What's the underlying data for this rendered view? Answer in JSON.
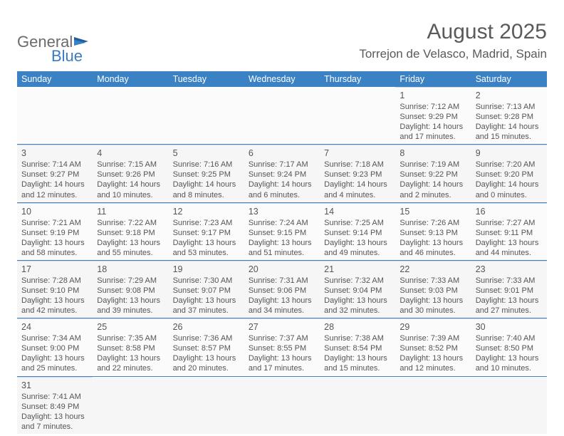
{
  "logo": {
    "text1": "General",
    "text2": "Blue"
  },
  "title": "August 2025",
  "location": "Torrejon de Velasco, Madrid, Spain",
  "colors": {
    "header_bg": "#3b82c4",
    "header_text": "#ffffff",
    "border": "#3b82c4",
    "cell_text": "#555555"
  },
  "day_headers": [
    "Sunday",
    "Monday",
    "Tuesday",
    "Wednesday",
    "Thursday",
    "Friday",
    "Saturday"
  ],
  "weeks": [
    [
      null,
      null,
      null,
      null,
      null,
      {
        "n": "1",
        "sr": "Sunrise: 7:12 AM",
        "ss": "Sunset: 9:29 PM",
        "dl": "Daylight: 14 hours and 17 minutes."
      },
      {
        "n": "2",
        "sr": "Sunrise: 7:13 AM",
        "ss": "Sunset: 9:28 PM",
        "dl": "Daylight: 14 hours and 15 minutes."
      }
    ],
    [
      {
        "n": "3",
        "sr": "Sunrise: 7:14 AM",
        "ss": "Sunset: 9:27 PM",
        "dl": "Daylight: 14 hours and 12 minutes."
      },
      {
        "n": "4",
        "sr": "Sunrise: 7:15 AM",
        "ss": "Sunset: 9:26 PM",
        "dl": "Daylight: 14 hours and 10 minutes."
      },
      {
        "n": "5",
        "sr": "Sunrise: 7:16 AM",
        "ss": "Sunset: 9:25 PM",
        "dl": "Daylight: 14 hours and 8 minutes."
      },
      {
        "n": "6",
        "sr": "Sunrise: 7:17 AM",
        "ss": "Sunset: 9:24 PM",
        "dl": "Daylight: 14 hours and 6 minutes."
      },
      {
        "n": "7",
        "sr": "Sunrise: 7:18 AM",
        "ss": "Sunset: 9:23 PM",
        "dl": "Daylight: 14 hours and 4 minutes."
      },
      {
        "n": "8",
        "sr": "Sunrise: 7:19 AM",
        "ss": "Sunset: 9:22 PM",
        "dl": "Daylight: 14 hours and 2 minutes."
      },
      {
        "n": "9",
        "sr": "Sunrise: 7:20 AM",
        "ss": "Sunset: 9:20 PM",
        "dl": "Daylight: 14 hours and 0 minutes."
      }
    ],
    [
      {
        "n": "10",
        "sr": "Sunrise: 7:21 AM",
        "ss": "Sunset: 9:19 PM",
        "dl": "Daylight: 13 hours and 58 minutes."
      },
      {
        "n": "11",
        "sr": "Sunrise: 7:22 AM",
        "ss": "Sunset: 9:18 PM",
        "dl": "Daylight: 13 hours and 55 minutes."
      },
      {
        "n": "12",
        "sr": "Sunrise: 7:23 AM",
        "ss": "Sunset: 9:17 PM",
        "dl": "Daylight: 13 hours and 53 minutes."
      },
      {
        "n": "13",
        "sr": "Sunrise: 7:24 AM",
        "ss": "Sunset: 9:15 PM",
        "dl": "Daylight: 13 hours and 51 minutes."
      },
      {
        "n": "14",
        "sr": "Sunrise: 7:25 AM",
        "ss": "Sunset: 9:14 PM",
        "dl": "Daylight: 13 hours and 49 minutes."
      },
      {
        "n": "15",
        "sr": "Sunrise: 7:26 AM",
        "ss": "Sunset: 9:13 PM",
        "dl": "Daylight: 13 hours and 46 minutes."
      },
      {
        "n": "16",
        "sr": "Sunrise: 7:27 AM",
        "ss": "Sunset: 9:11 PM",
        "dl": "Daylight: 13 hours and 44 minutes."
      }
    ],
    [
      {
        "n": "17",
        "sr": "Sunrise: 7:28 AM",
        "ss": "Sunset: 9:10 PM",
        "dl": "Daylight: 13 hours and 42 minutes."
      },
      {
        "n": "18",
        "sr": "Sunrise: 7:29 AM",
        "ss": "Sunset: 9:08 PM",
        "dl": "Daylight: 13 hours and 39 minutes."
      },
      {
        "n": "19",
        "sr": "Sunrise: 7:30 AM",
        "ss": "Sunset: 9:07 PM",
        "dl": "Daylight: 13 hours and 37 minutes."
      },
      {
        "n": "20",
        "sr": "Sunrise: 7:31 AM",
        "ss": "Sunset: 9:06 PM",
        "dl": "Daylight: 13 hours and 34 minutes."
      },
      {
        "n": "21",
        "sr": "Sunrise: 7:32 AM",
        "ss": "Sunset: 9:04 PM",
        "dl": "Daylight: 13 hours and 32 minutes."
      },
      {
        "n": "22",
        "sr": "Sunrise: 7:33 AM",
        "ss": "Sunset: 9:03 PM",
        "dl": "Daylight: 13 hours and 30 minutes."
      },
      {
        "n": "23",
        "sr": "Sunrise: 7:33 AM",
        "ss": "Sunset: 9:01 PM",
        "dl": "Daylight: 13 hours and 27 minutes."
      }
    ],
    [
      {
        "n": "24",
        "sr": "Sunrise: 7:34 AM",
        "ss": "Sunset: 9:00 PM",
        "dl": "Daylight: 13 hours and 25 minutes."
      },
      {
        "n": "25",
        "sr": "Sunrise: 7:35 AM",
        "ss": "Sunset: 8:58 PM",
        "dl": "Daylight: 13 hours and 22 minutes."
      },
      {
        "n": "26",
        "sr": "Sunrise: 7:36 AM",
        "ss": "Sunset: 8:57 PM",
        "dl": "Daylight: 13 hours and 20 minutes."
      },
      {
        "n": "27",
        "sr": "Sunrise: 7:37 AM",
        "ss": "Sunset: 8:55 PM",
        "dl": "Daylight: 13 hours and 17 minutes."
      },
      {
        "n": "28",
        "sr": "Sunrise: 7:38 AM",
        "ss": "Sunset: 8:54 PM",
        "dl": "Daylight: 13 hours and 15 minutes."
      },
      {
        "n": "29",
        "sr": "Sunrise: 7:39 AM",
        "ss": "Sunset: 8:52 PM",
        "dl": "Daylight: 13 hours and 12 minutes."
      },
      {
        "n": "30",
        "sr": "Sunrise: 7:40 AM",
        "ss": "Sunset: 8:50 PM",
        "dl": "Daylight: 13 hours and 10 minutes."
      }
    ],
    [
      {
        "n": "31",
        "sr": "Sunrise: 7:41 AM",
        "ss": "Sunset: 8:49 PM",
        "dl": "Daylight: 13 hours and 7 minutes."
      },
      null,
      null,
      null,
      null,
      null,
      null
    ]
  ]
}
